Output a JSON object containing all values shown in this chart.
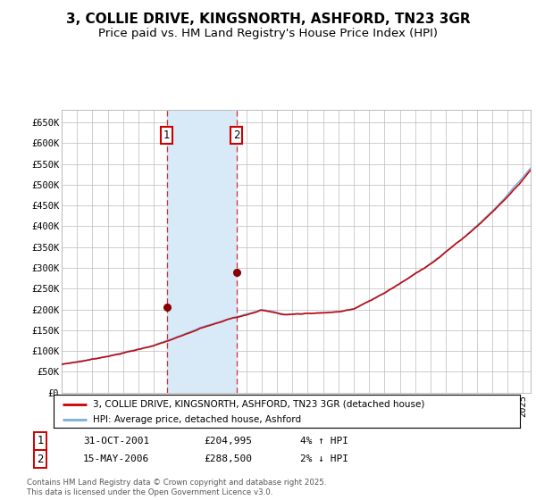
{
  "title": "3, COLLIE DRIVE, KINGSNORTH, ASHFORD, TN23 3GR",
  "subtitle": "Price paid vs. HM Land Registry's House Price Index (HPI)",
  "ylim": [
    0,
    680000
  ],
  "yticks": [
    0,
    50000,
    100000,
    150000,
    200000,
    250000,
    300000,
    350000,
    400000,
    450000,
    500000,
    550000,
    600000,
    650000
  ],
  "ytick_labels": [
    "£0",
    "£50K",
    "£100K",
    "£150K",
    "£200K",
    "£250K",
    "£300K",
    "£350K",
    "£400K",
    "£450K",
    "£500K",
    "£550K",
    "£600K",
    "£650K"
  ],
  "xlim_start": 1995.0,
  "xlim_end": 2025.5,
  "hpi_color": "#7aaddb",
  "price_color": "#cc0000",
  "marker_color": "#880000",
  "sale1_x": 2001.83,
  "sale1_y": 204995,
  "sale2_x": 2006.37,
  "sale2_y": 288500,
  "shade_color": "#d8eaf8",
  "vline_color": "#cc3333",
  "background_color": "#ffffff",
  "grid_color": "#bbbbbb",
  "legend1_label": "3, COLLIE DRIVE, KINGSNORTH, ASHFORD, TN23 3GR (detached house)",
  "legend2_label": "HPI: Average price, detached house, Ashford",
  "copyright": "Contains HM Land Registry data © Crown copyright and database right 2025.\nThis data is licensed under the Open Government Licence v3.0.",
  "title_fontsize": 11,
  "subtitle_fontsize": 9.5,
  "tick_fontsize": 7.5
}
